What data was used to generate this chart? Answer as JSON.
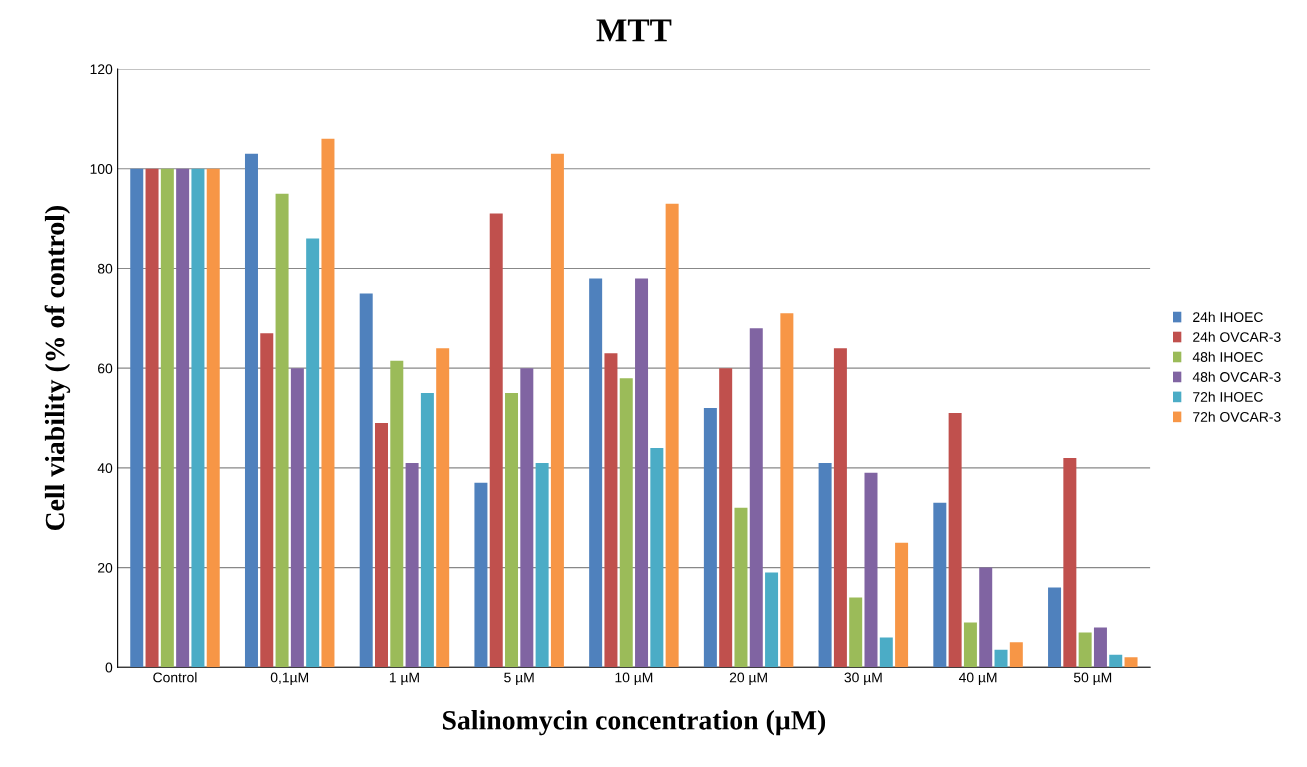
{
  "chart_data": {
    "type": "bar",
    "title": "MTT",
    "xlabel": "Salinomycin concentration (µM)",
    "ylabel": "Cell viability (% of control)",
    "categories": [
      "Control",
      "0,1µM",
      "1 µM",
      "5 µM",
      "10 µM",
      "20 µM",
      "30 µM",
      "40 µM",
      "50 µM"
    ],
    "series": [
      {
        "name": "24h IHOEC",
        "color": "#4f81bd",
        "values": [
          100,
          103,
          75,
          37,
          78,
          52,
          41,
          33,
          16
        ]
      },
      {
        "name": "24h OVCAR-3",
        "color": "#c0504d",
        "values": [
          100,
          67,
          49,
          91,
          63,
          60,
          64,
          51,
          42
        ]
      },
      {
        "name": "48h IHOEC",
        "color": "#9bbb59",
        "values": [
          100,
          95,
          61.5,
          55,
          58,
          32,
          14,
          9,
          7
        ]
      },
      {
        "name": "48h OVCAR-3",
        "color": "#8064a2",
        "values": [
          100,
          60,
          41,
          60,
          78,
          68,
          39,
          20,
          8
        ]
      },
      {
        "name": "72h IHOEC",
        "color": "#4bacc6",
        "values": [
          100,
          86,
          55,
          41,
          44,
          19,
          6,
          3.5,
          2.5
        ]
      },
      {
        "name": "72h OVCAR-3",
        "color": "#f79646",
        "values": [
          100,
          106,
          64,
          103,
          93,
          71,
          25,
          5,
          2
        ]
      }
    ],
    "ylim": [
      0,
      120
    ],
    "yticks": [
      0,
      20,
      40,
      60,
      80,
      100,
      120
    ],
    "grid": "y",
    "legend": "right"
  }
}
